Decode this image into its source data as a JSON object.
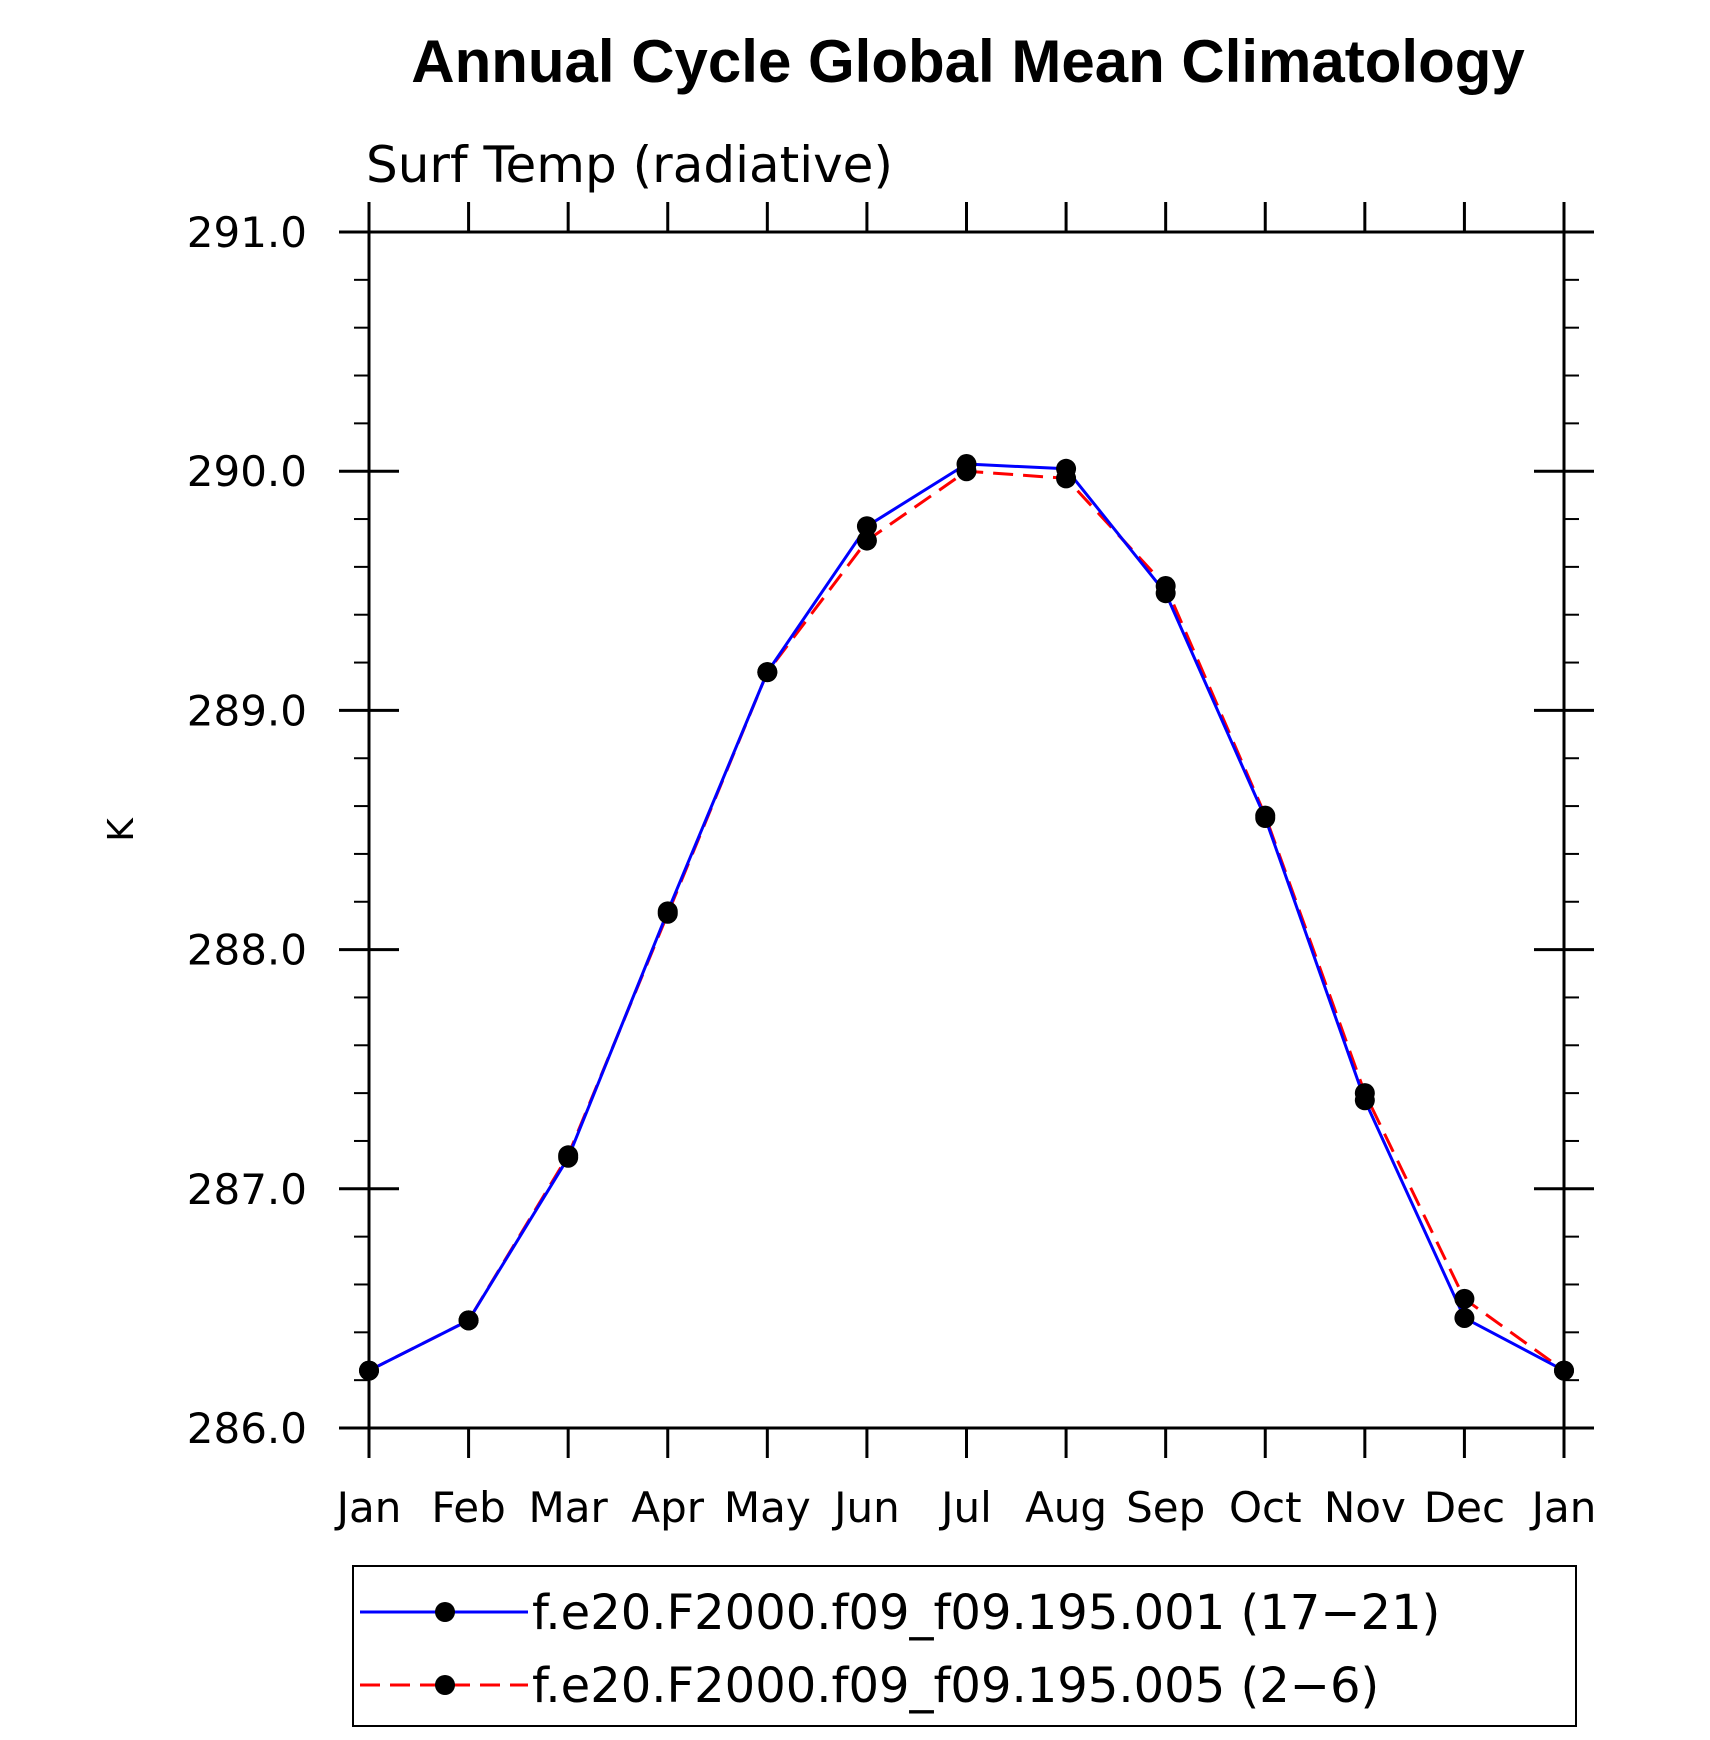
{
  "chart_data": {
    "type": "line",
    "title": "Annual Cycle Global Mean Climatology",
    "subtitle": "Surf Temp (radiative)",
    "xlabel": "",
    "ylabel": "K",
    "categories": [
      "Jan",
      "Feb",
      "Mar",
      "Apr",
      "May",
      "Jun",
      "Jul",
      "Aug",
      "Sep",
      "Oct",
      "Nov",
      "Dec",
      "Jan"
    ],
    "ylim": [
      286.0,
      291.0
    ],
    "yticks": [
      "286.0",
      "287.0",
      "288.0",
      "289.0",
      "290.0",
      "291.0"
    ],
    "grid": false,
    "legend_position": "bottom",
    "series": [
      {
        "name": "f.e20.F2000.f09_f09.195.001 (17−21)",
        "color": "#0000ff",
        "style": "solid",
        "marker": "filled-circle",
        "values": [
          286.24,
          286.45,
          287.13,
          288.16,
          289.16,
          289.77,
          290.03,
          290.01,
          289.49,
          288.55,
          287.37,
          286.46,
          286.24
        ]
      },
      {
        "name": "f.e20.F2000.f09_f09.195.005 (2−6)",
        "color": "#ff0000",
        "style": "dashed",
        "marker": "filled-circle",
        "values": [
          286.24,
          286.45,
          287.14,
          288.15,
          289.16,
          289.71,
          290.0,
          289.97,
          289.52,
          288.56,
          287.4,
          286.54,
          286.24
        ]
      }
    ]
  }
}
